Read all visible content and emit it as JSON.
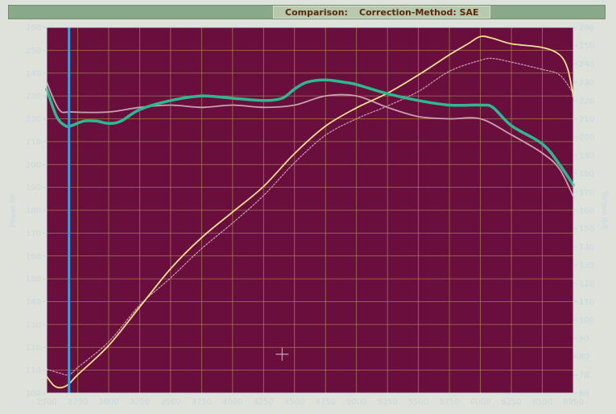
{
  "header": {
    "comparison_label": "Comparison:",
    "method_label": "Correction-Method: SAE"
  },
  "colors": {
    "background": "#6a0f3d",
    "grid": "#b89a5a",
    "axis_text": "#c8d8e0",
    "power_current": "#2fb890",
    "torque_current": "#f0e090",
    "power_compare": "#c8a0b0",
    "torque_compare": "#c8a0b0",
    "marker_line": "#3aa0e0",
    "cursor": "#c8a0b0"
  },
  "chart_data": {
    "type": "line",
    "xlabel": "",
    "ylabel_left": "Power HP",
    "ylabel_right": "Torque lbft",
    "xlim": [
      2500,
      6950
    ],
    "ylim_left": [
      100,
      260
    ],
    "ylim_right": [
      60,
      260
    ],
    "grid": true,
    "x_ticks": [
      2500,
      2750,
      3000,
      3250,
      3500,
      3750,
      4000,
      4250,
      4500,
      4750,
      5000,
      5250,
      5500,
      5750,
      6000,
      6250,
      6500,
      6950
    ],
    "y_left_ticks": [
      100,
      110,
      120,
      130,
      140,
      150,
      160,
      170,
      180,
      190,
      200,
      210,
      220,
      230,
      240,
      250,
      260
    ],
    "y_right_ticks": [
      60,
      70,
      80,
      90,
      100,
      110,
      120,
      130,
      140,
      150,
      160,
      170,
      180,
      190,
      200,
      210,
      220,
      230,
      240,
      250,
      260
    ],
    "marker_x": 2680,
    "cursor_point": {
      "x": 4400,
      "y": 117
    },
    "series": [
      {
        "axis": "left",
        "style": "thick",
        "color": "#2fb890",
        "x": [
          2500,
          2580,
          2650,
          2700,
          2800,
          2900,
          3000,
          3100,
          3250,
          3500,
          3750,
          4000,
          4250,
          4400,
          4500,
          4600,
          4750,
          4900,
          5000,
          5250,
          5500,
          5750,
          6000,
          6100,
          6250,
          6500,
          6750,
          6950
        ],
        "y": [
          233,
          221,
          217,
          217,
          219,
          219,
          218,
          219,
          224,
          228,
          230,
          229,
          228,
          229,
          233,
          236,
          237,
          236,
          235,
          231,
          228,
          226,
          226,
          225,
          217,
          209,
          200,
          191
        ]
      },
      {
        "axis": "left",
        "style": "thin",
        "color": "#c8a0b0",
        "x": [
          2500,
          2600,
          2700,
          3000,
          3250,
          3500,
          3750,
          4000,
          4250,
          4500,
          4750,
          5000,
          5250,
          5500,
          5750,
          6000,
          6250,
          6500,
          6750,
          6950
        ],
        "y": [
          236,
          224,
          223,
          223,
          225,
          226,
          225,
          226,
          225,
          226,
          230,
          230,
          225,
          221,
          220,
          220,
          213,
          205,
          198,
          186
        ]
      },
      {
        "axis": "right",
        "style": "thin",
        "color": "#f0e090",
        "x": [
          2500,
          2560,
          2620,
          2680,
          2750,
          3000,
          3250,
          3500,
          3750,
          4000,
          4250,
          4500,
          4750,
          5000,
          5250,
          5500,
          5750,
          5900,
          6000,
          6100,
          6250,
          6500,
          6750,
          6870,
          6950
        ],
        "y": [
          69,
          64,
          63,
          65,
          70,
          86,
          107,
          128,
          145,
          159,
          173,
          191,
          206,
          216,
          224,
          234,
          245,
          251,
          255,
          254,
          251,
          249,
          245,
          237,
          222
        ]
      },
      {
        "axis": "right",
        "style": "thin-dotted",
        "color": "#c8a0b0",
        "x": [
          2500,
          2600,
          2680,
          2750,
          3000,
          3250,
          3500,
          3750,
          4000,
          4250,
          4500,
          4750,
          5000,
          5250,
          5500,
          5750,
          6000,
          6100,
          6250,
          6500,
          6750,
          6950
        ],
        "y": [
          73,
          71,
          70,
          74,
          88,
          108,
          123,
          139,
          153,
          168,
          186,
          201,
          210,
          217,
          225,
          236,
          242,
          243,
          241,
          237,
          234,
          224
        ]
      }
    ]
  }
}
